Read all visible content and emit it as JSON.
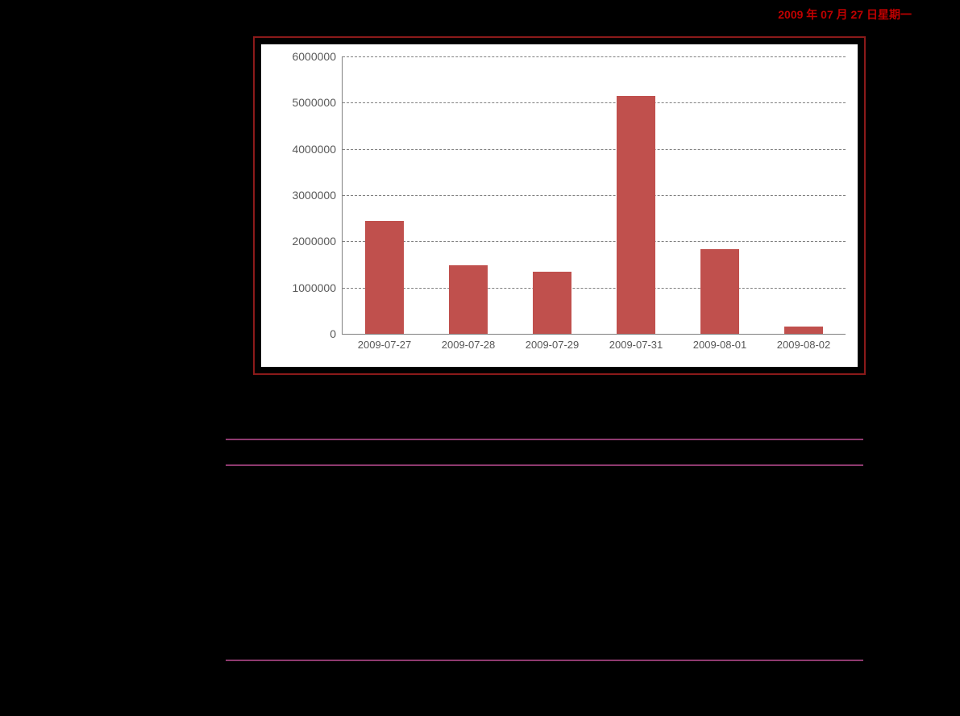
{
  "header": {
    "date_text": "2009 年 07 月 27 日星期一",
    "date_color": "#c00000"
  },
  "chart": {
    "type": "bar",
    "border_color": "#8b1a1a",
    "background_color": "#ffffff",
    "plot_bg": "#ffffff",
    "bar_color": "#c0504d",
    "grid_color": "#808080",
    "axis_color": "#808080",
    "label_color": "#595959",
    "label_fontsize": 14,
    "bar_width": 0.45,
    "ylim": [
      0,
      6000000
    ],
    "ytick_step": 1000000,
    "yticks": [
      {
        "value": 0,
        "label": "0"
      },
      {
        "value": 1000000,
        "label": "1000000"
      },
      {
        "value": 2000000,
        "label": "2000000"
      },
      {
        "value": 3000000,
        "label": "3000000"
      },
      {
        "value": 4000000,
        "label": "4000000"
      },
      {
        "value": 5000000,
        "label": "5000000"
      },
      {
        "value": 6000000,
        "label": "6000000"
      }
    ],
    "categories": [
      "2009-07-27",
      "2009-07-28",
      "2009-07-29",
      "2009-07-31",
      "2009-08-01",
      "2009-08-02"
    ],
    "values": [
      2450000,
      1480000,
      1350000,
      5150000,
      1830000,
      150000
    ]
  },
  "sections": {
    "title_color": "#a6407e",
    "hr_color": "#8e3a6f"
  }
}
